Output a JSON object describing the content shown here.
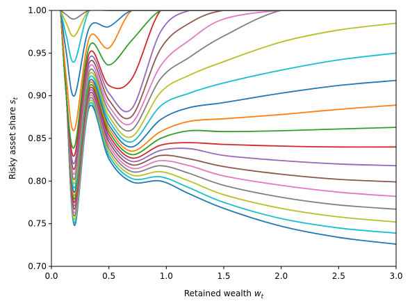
{
  "chart_data": {
    "type": "line",
    "title": "",
    "xlabel": "Retained wealth w_t",
    "ylabel": "Risky asset share s_t",
    "xlabel_parts": {
      "main": "Retained wealth ",
      "var": "w",
      "sub": "t"
    },
    "ylabel_parts": {
      "main": "Risky asset share ",
      "var": "s",
      "sub": "t"
    },
    "xlim": [
      0.0,
      3.0
    ],
    "ylim": [
      0.7,
      1.0
    ],
    "xticks": [
      "0.0",
      "0.5",
      "1.0",
      "1.5",
      "2.0",
      "2.5",
      "3.0"
    ],
    "yticks": [
      "0.70",
      "0.75",
      "0.80",
      "0.85",
      "0.90",
      "0.95",
      "1.00"
    ],
    "grid": false,
    "legend": "none",
    "palette": [
      "#1f77b4",
      "#17becf",
      "#bcbd22",
      "#7f7f7f",
      "#e377c2",
      "#8c564b",
      "#9467bd",
      "#d62728",
      "#2ca02c",
      "#ff7f0e",
      "#1f77b4",
      "#17becf",
      "#bcbd22",
      "#7f7f7f",
      "#e377c2",
      "#8c564b",
      "#9467bd",
      "#d62728",
      "#2ca02c",
      "#ff7f0e",
      "#1f77b4",
      "#17becf",
      "#bcbd22",
      "#7f7f7f"
    ],
    "x": [
      0.08,
      0.13,
      0.2,
      0.33,
      0.5,
      0.7,
      0.95,
      1.2,
      1.5,
      2.0,
      2.5,
      3.0
    ],
    "series": [
      {
        "values": [
          1.0,
          0.9,
          0.748,
          0.887,
          0.826,
          0.799,
          0.8,
          0.785,
          0.768,
          0.747,
          0.734,
          0.726
        ]
      },
      {
        "values": [
          1.0,
          0.9,
          0.751,
          0.89,
          0.83,
          0.803,
          0.805,
          0.792,
          0.775,
          0.756,
          0.745,
          0.739
        ]
      },
      {
        "values": [
          1.0,
          0.9,
          0.755,
          0.893,
          0.834,
          0.807,
          0.811,
          0.8,
          0.784,
          0.768,
          0.758,
          0.752
        ]
      },
      {
        "values": [
          1.0,
          0.9,
          0.759,
          0.896,
          0.838,
          0.811,
          0.818,
          0.809,
          0.795,
          0.781,
          0.772,
          0.767
        ]
      },
      {
        "values": [
          1.0,
          0.9,
          0.763,
          0.899,
          0.842,
          0.815,
          0.824,
          0.818,
          0.806,
          0.795,
          0.787,
          0.782
        ]
      },
      {
        "values": [
          1.0,
          0.9,
          0.767,
          0.902,
          0.846,
          0.819,
          0.83,
          0.826,
          0.817,
          0.808,
          0.802,
          0.799
        ]
      },
      {
        "values": [
          1.0,
          0.9,
          0.771,
          0.905,
          0.85,
          0.823,
          0.836,
          0.838,
          0.83,
          0.824,
          0.82,
          0.818
        ]
      },
      {
        "values": [
          1.0,
          0.9,
          0.775,
          0.908,
          0.854,
          0.827,
          0.842,
          0.845,
          0.843,
          0.841,
          0.84,
          0.84
        ]
      },
      {
        "values": [
          1.0,
          0.9,
          0.779,
          0.911,
          0.858,
          0.831,
          0.85,
          0.859,
          0.858,
          0.859,
          0.861,
          0.863
        ]
      },
      {
        "values": [
          1.0,
          0.9,
          0.783,
          0.914,
          0.862,
          0.835,
          0.858,
          0.87,
          0.873,
          0.878,
          0.884,
          0.889
        ]
      },
      {
        "values": [
          1.0,
          0.9,
          0.787,
          0.917,
          0.866,
          0.84,
          0.872,
          0.886,
          0.892,
          0.903,
          0.912,
          0.918
        ]
      },
      {
        "values": [
          1.0,
          0.9,
          0.792,
          0.921,
          0.871,
          0.846,
          0.888,
          0.903,
          0.915,
          0.93,
          0.942,
          0.95
        ]
      },
      {
        "values": [
          1.0,
          0.9,
          0.797,
          0.925,
          0.876,
          0.852,
          0.904,
          0.924,
          0.94,
          0.963,
          0.977,
          0.985
        ]
      },
      {
        "values": [
          1.0,
          0.9,
          0.802,
          0.929,
          0.882,
          0.86,
          0.92,
          0.945,
          0.97,
          1.0,
          1.0,
          1.0
        ]
      },
      {
        "values": [
          1.0,
          0.9,
          0.808,
          0.934,
          0.888,
          0.868,
          0.935,
          0.965,
          0.99,
          1.0,
          1.0,
          1.0
        ]
      },
      {
        "values": [
          1.0,
          0.9,
          0.814,
          0.939,
          0.895,
          0.876,
          0.955,
          0.985,
          1.0,
          1.0,
          1.0,
          1.0
        ]
      },
      {
        "values": [
          1.0,
          0.9,
          0.821,
          0.944,
          0.903,
          0.885,
          0.975,
          1.0,
          1.0,
          1.0,
          1.0,
          1.0
        ]
      },
      {
        "values": [
          1.0,
          0.9,
          0.83,
          0.95,
          0.912,
          0.92,
          1.0,
          1.0,
          1.0,
          1.0,
          1.0,
          1.0
        ]
      },
      {
        "values": [
          1.0,
          0.9,
          0.84,
          0.958,
          0.936,
          0.965,
          1.0,
          1.0,
          1.0,
          1.0,
          1.0,
          1.0
        ]
      },
      {
        "values": [
          1.0,
          0.92,
          0.86,
          0.968,
          0.956,
          1.0,
          1.0,
          1.0,
          1.0,
          1.0,
          1.0,
          1.0
        ]
      },
      {
        "values": [
          1.0,
          0.95,
          0.9,
          0.98,
          0.981,
          1.0,
          1.0,
          1.0,
          1.0,
          1.0,
          1.0,
          1.0
        ]
      },
      {
        "values": [
          1.0,
          0.97,
          0.94,
          1.0,
          1.0,
          1.0,
          1.0,
          1.0,
          1.0,
          1.0,
          1.0,
          1.0
        ]
      },
      {
        "values": [
          1.0,
          0.985,
          0.97,
          1.0,
          1.0,
          1.0,
          1.0,
          1.0,
          1.0,
          1.0,
          1.0,
          1.0
        ]
      },
      {
        "values": [
          1.0,
          0.995,
          0.99,
          1.0,
          1.0,
          1.0,
          1.0,
          1.0,
          1.0,
          1.0,
          1.0,
          1.0
        ]
      }
    ]
  }
}
